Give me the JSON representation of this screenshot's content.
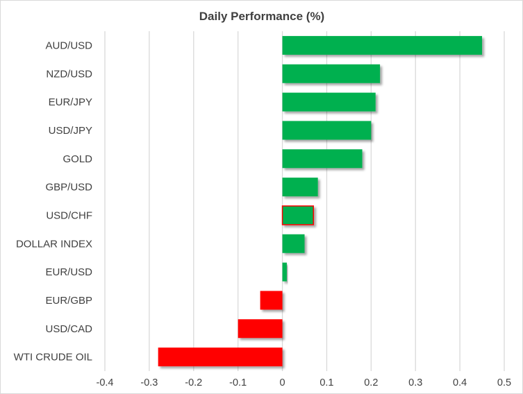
{
  "chart_data": {
    "type": "bar",
    "orientation": "horizontal",
    "title": "Daily Performance (%)",
    "xlabel": "",
    "ylabel": "",
    "categories": [
      "AUD/USD",
      "NZD/USD",
      "EUR/JPY",
      "USD/JPY",
      "GOLD",
      "GBP/USD",
      "USD/CHF",
      "DOLLAR INDEX",
      "EUR/USD",
      "EUR/GBP",
      "USD/CAD",
      "WTI CRUDE OIL"
    ],
    "values": [
      0.45,
      0.22,
      0.21,
      0.2,
      0.18,
      0.08,
      0.07,
      0.05,
      0.01,
      -0.05,
      -0.1,
      -0.28
    ],
    "xlim": [
      -0.4,
      0.5
    ],
    "xticks": [
      "-0.4",
      "-0.3",
      "-0.2",
      "-0.1",
      "0",
      "0.1",
      "0.2",
      "0.3",
      "0.4",
      "0.5"
    ],
    "grid": "vertical",
    "legend": "none",
    "colors": {
      "positive": "#00b050",
      "negative": "#ff0000",
      "highlight_outline": "#ff0000",
      "grid": "#d9d9d9"
    },
    "highlighted_category": "USD/CHF"
  }
}
